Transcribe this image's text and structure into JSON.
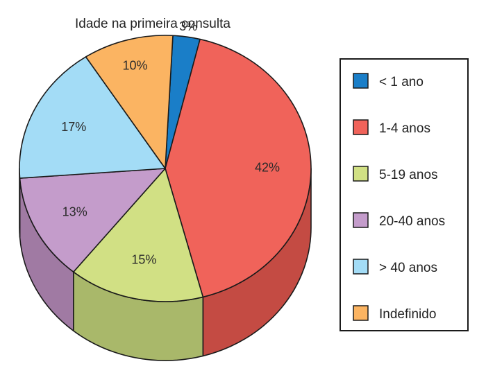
{
  "chart_data": {
    "type": "pie",
    "title": "Idade na primeira consulta",
    "three_d": true,
    "legend_position": "right",
    "slices": [
      {
        "label": "< 1 ano",
        "value": 3,
        "value_label": "3%",
        "color": "#1a7ec8",
        "side_color": "#135f96"
      },
      {
        "label": "1-4 anos",
        "value": 42,
        "value_label": "42%",
        "color": "#f0635a",
        "side_color": "#c44b43"
      },
      {
        "label": "5-19 anos",
        "value": 15,
        "value_label": "15%",
        "color": "#d1e084",
        "side_color": "#a9b86a"
      },
      {
        "label": "20-40 anos",
        "value": 13,
        "value_label": "13%",
        "color": "#c49ccb",
        "side_color": "#a07aa3"
      },
      {
        "label": "> 40 anos",
        "value": 17,
        "value_label": "17%",
        "color": "#a3dcf6",
        "side_color": "#84b4c8"
      },
      {
        "label": "Indefinido",
        "value": 10,
        "value_label": "10%",
        "color": "#fbb462",
        "side_color": "#cf9350"
      }
    ]
  }
}
